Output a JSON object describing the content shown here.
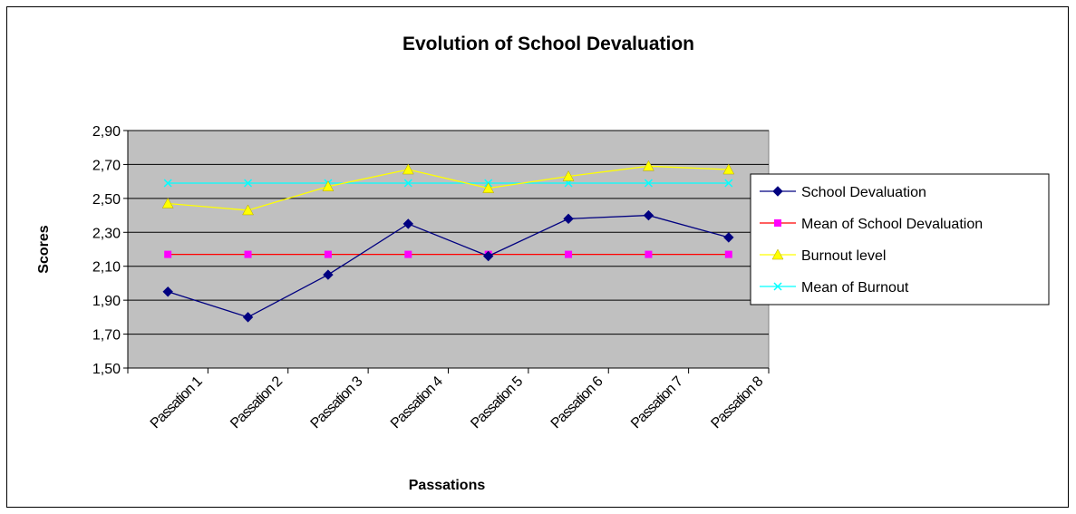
{
  "chart_data": {
    "type": "line",
    "title": "Evolution of School Devaluation",
    "xlabel": "Passations",
    "ylabel": "Scores",
    "categories": [
      "Passation 1",
      "Passation 2",
      "Passation 3",
      "Passation 4",
      "Passation 5",
      "Passation 6",
      "Passation 7",
      "Passation 8"
    ],
    "ylim": [
      1.5,
      2.9
    ],
    "yticks": [
      "1,50",
      "1,70",
      "1,90",
      "2,10",
      "2,30",
      "2,50",
      "2,70",
      "2,90"
    ],
    "grid": true,
    "plot_background": "#c0c0c0",
    "legend_position": "right",
    "series": [
      {
        "name": "School Devaluation",
        "values": [
          1.95,
          1.8,
          2.05,
          2.35,
          2.16,
          2.38,
          2.4,
          2.27
        ],
        "color": "#000080",
        "marker": "diamond"
      },
      {
        "name": "Mean of School Devaluation",
        "values": [
          2.17,
          2.17,
          2.17,
          2.17,
          2.17,
          2.17,
          2.17,
          2.17
        ],
        "color": "#ff00ff",
        "line_color": "#ff0000",
        "marker": "square"
      },
      {
        "name": "Burnout level",
        "values": [
          2.47,
          2.43,
          2.57,
          2.67,
          2.56,
          2.63,
          2.69,
          2.67
        ],
        "color": "#ffff00",
        "marker": "triangle"
      },
      {
        "name": "Mean of Burnout",
        "values": [
          2.59,
          2.59,
          2.59,
          2.59,
          2.59,
          2.59,
          2.59,
          2.59
        ],
        "color": "#00ffff",
        "marker": "x"
      }
    ]
  }
}
